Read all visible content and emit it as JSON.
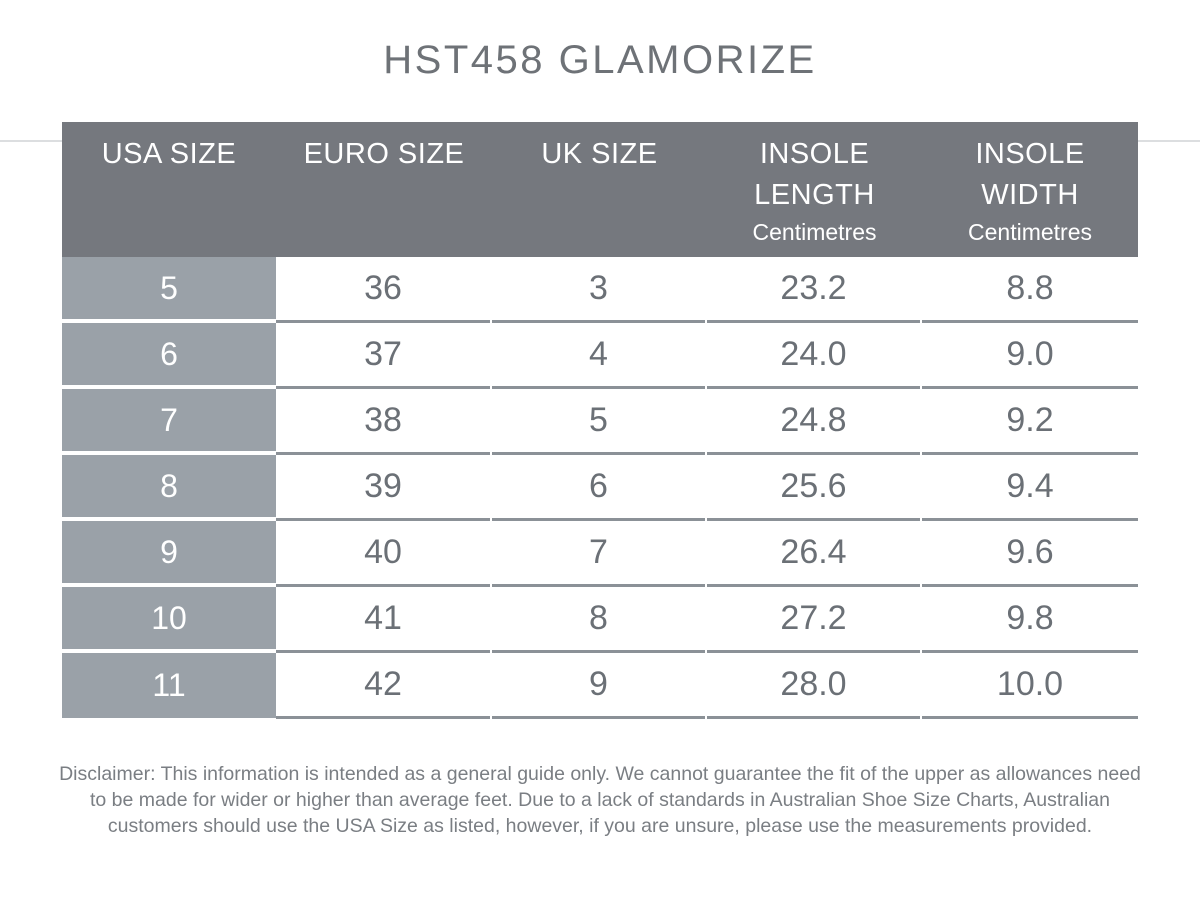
{
  "page": {
    "title": "HST458 GLAMORIZE"
  },
  "table": {
    "columns": [
      {
        "label": "USA SIZE",
        "sub": ""
      },
      {
        "label": "EURO SIZE",
        "sub": ""
      },
      {
        "label": "UK SIZE",
        "sub": ""
      },
      {
        "label": "INSOLE LENGTH",
        "sub": "Centimetres"
      },
      {
        "label": "INSOLE WIDTH",
        "sub": "Centimetres"
      }
    ],
    "rows": [
      [
        "5",
        "36",
        "3",
        "23.2",
        "8.8"
      ],
      [
        "6",
        "37",
        "4",
        "24.0",
        "9.0"
      ],
      [
        "7",
        "38",
        "5",
        "24.8",
        "9.2"
      ],
      [
        "8",
        "39",
        "6",
        "25.6",
        "9.4"
      ],
      [
        "9",
        "40",
        "7",
        "26.4",
        "9.6"
      ],
      [
        "10",
        "41",
        "8",
        "27.2",
        "9.8"
      ],
      [
        "11",
        "42",
        "9",
        "28.0",
        "10.0"
      ]
    ]
  },
  "disclaimer": "Disclaimer: This information is intended as a general guide only. We cannot guarantee the fit of the upper as allowances need to be made for wider or higher than average feet. Due to a lack of standards in Australian Shoe Size Charts, Australian customers should use the USA Size as listed, however, if you are unsure, please use the measurements provided.",
  "colors": {
    "header_bg": "#75787E",
    "row_label_bg": "#9AA1A8",
    "line": "#8B9197",
    "data_text": "#6B7076",
    "title_text": "#6E7277",
    "header_text": "#FFFFFF",
    "disclaimer_text": "#7A7E83",
    "rule": "#DCDEE0",
    "page_bg": "#FFFFFF"
  }
}
